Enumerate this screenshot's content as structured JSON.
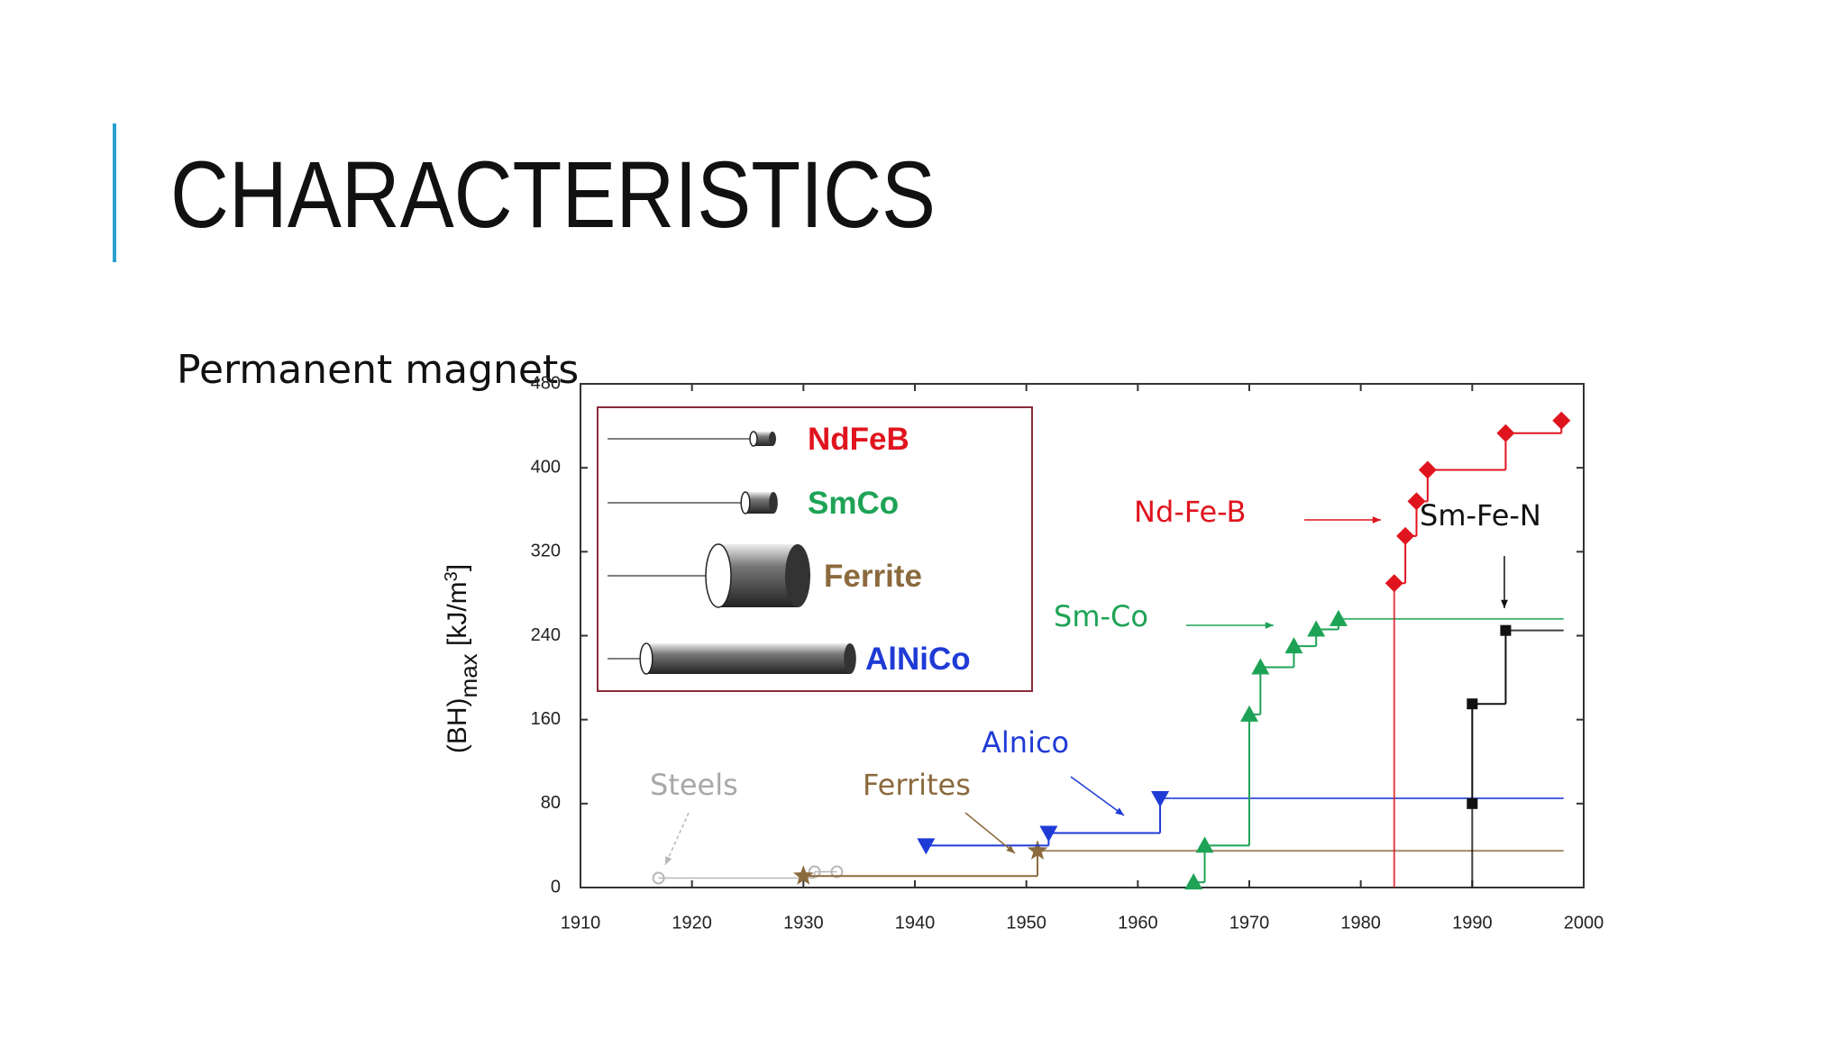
{
  "slide": {
    "title": "CHARACTERISTICS",
    "text": "Permanent magnets"
  },
  "chart_data": {
    "type": "step",
    "ylabel": [
      "(BH)",
      "max",
      " [kJ/m",
      "3",
      "]"
    ],
    "xlim": [
      1910,
      2000
    ],
    "xticks": [
      1910,
      1920,
      1930,
      1940,
      1950,
      1960,
      1970,
      1980,
      1990,
      2000
    ],
    "ylim": [
      0,
      480
    ],
    "yticks": [
      0,
      80,
      160,
      240,
      320,
      400,
      480
    ],
    "grid": false,
    "series": [
      {
        "name": "Steels",
        "color": "#b8b8b8",
        "marker": "circle",
        "x": [
          1917,
          1931,
          1933
        ],
        "values": [
          9,
          15,
          15
        ]
      },
      {
        "name": "Ferrites",
        "color": "#8b6a3e",
        "marker": "star",
        "x": [
          1930,
          1951
        ],
        "values": [
          11,
          35
        ]
      },
      {
        "name": "Alnico",
        "color": "#1f3bd6",
        "marker": "triangle-down",
        "x": [
          1941,
          1952,
          1962
        ],
        "values": [
          40,
          52,
          85
        ]
      },
      {
        "name": "Sm-Co",
        "color": "#1ea356",
        "marker": "triangle-up",
        "x": [
          1965,
          1966,
          1970,
          1971,
          1974,
          1976,
          1978
        ],
        "values": [
          5,
          40,
          165,
          210,
          230,
          246,
          256
        ]
      },
      {
        "name": "Nd-Fe-B",
        "color": "#e0141e",
        "marker": "diamond",
        "x": [
          1983,
          1984,
          1985,
          1986,
          1993,
          1998
        ],
        "values": [
          290,
          335,
          368,
          398,
          433,
          445
        ]
      },
      {
        "name": "Sm-Fe-N",
        "color": "#111111",
        "marker": "square",
        "x": [
          1990,
          1990,
          1993
        ],
        "values": [
          80,
          175,
          245
        ]
      }
    ],
    "legend": [
      {
        "name": "NdFeB",
        "color": "#e0141e"
      },
      {
        "name": "SmCo",
        "color": "#1ea356"
      },
      {
        "name": "Ferrite",
        "color": "#8b6a3e"
      },
      {
        "name": "AlNiCo",
        "color": "#1f3bd6"
      }
    ]
  }
}
